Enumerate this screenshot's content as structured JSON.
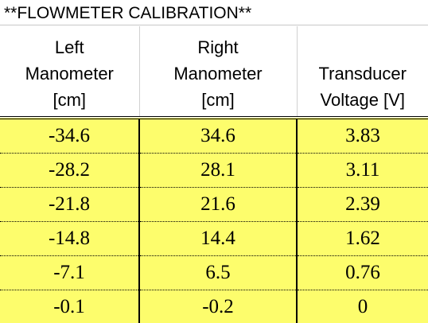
{
  "title": "**FLOWMETER CALIBRATION**",
  "table": {
    "header": [
      [
        "Left",
        "Manometer",
        "[cm]"
      ],
      [
        "Right",
        "Manometer",
        "[cm]"
      ],
      [
        "Transducer",
        "Voltage [V]"
      ]
    ],
    "rows": [
      [
        "-34.6",
        "34.6",
        "3.83"
      ],
      [
        "-28.2",
        "28.1",
        "3.11"
      ],
      [
        "-21.8",
        "21.6",
        "2.39"
      ],
      [
        "-14.8",
        "14.4",
        "1.62"
      ],
      [
        "-7.1",
        "6.5",
        "0.76"
      ],
      [
        "-0.1",
        "-0.2",
        "0"
      ]
    ]
  }
}
